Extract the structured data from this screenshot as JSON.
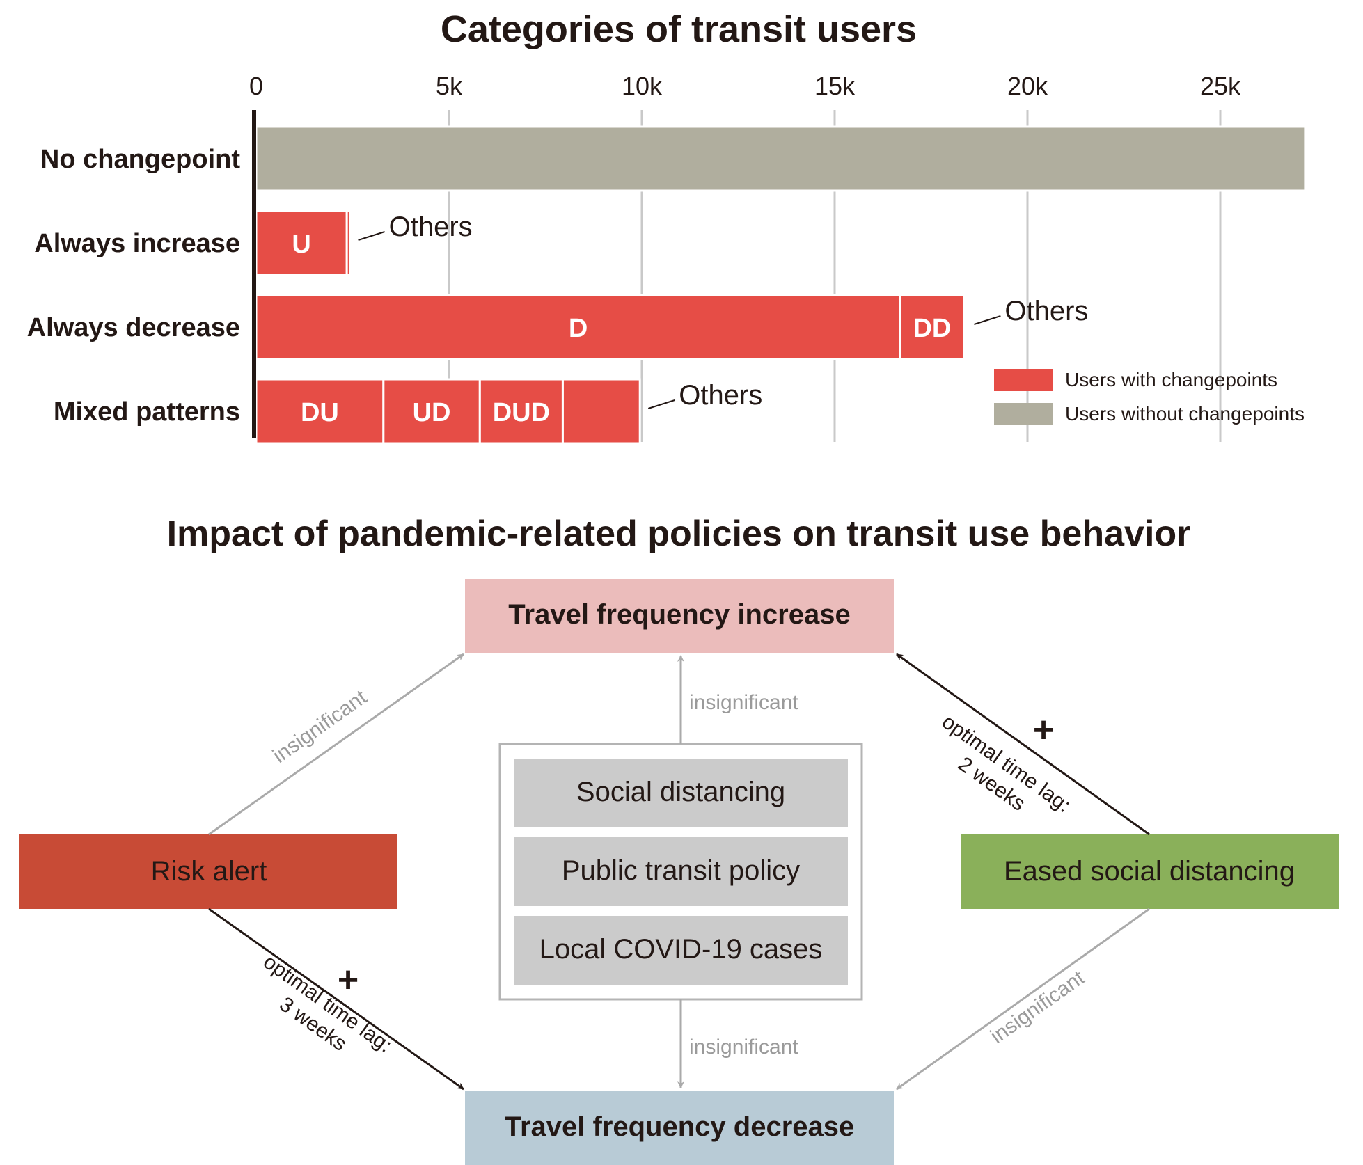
{
  "chart_data": {
    "type": "bar",
    "orientation": "horizontal",
    "stacked": true,
    "title": "Categories of transit users",
    "xlim": [
      0,
      27500
    ],
    "xticks": [
      {
        "value": 0,
        "label": "0"
      },
      {
        "value": 5000,
        "label": "5k"
      },
      {
        "value": 10000,
        "label": "10k"
      },
      {
        "value": 15000,
        "label": "15k"
      },
      {
        "value": 20000,
        "label": "20k"
      },
      {
        "value": 25000,
        "label": "25k"
      }
    ],
    "xaxis_position": "top",
    "grid": true,
    "categories": [
      "No changepoint",
      "Always increase",
      "Always decrease",
      "Mixed patterns"
    ],
    "rows": [
      {
        "category": "No changepoint",
        "segments": [
          {
            "label": "",
            "value": 27200,
            "group": "without"
          }
        ],
        "annotation": ""
      },
      {
        "category": "Always increase",
        "segments": [
          {
            "label": "U",
            "value": 2350,
            "group": "with"
          },
          {
            "label": "",
            "value": 80,
            "group": "with"
          }
        ],
        "annotation": "Others"
      },
      {
        "category": "Always decrease",
        "segments": [
          {
            "label": "D",
            "value": 16700,
            "group": "with"
          },
          {
            "label": "DD",
            "value": 1650,
            "group": "with"
          },
          {
            "label": "",
            "value": 50,
            "group": "with"
          }
        ],
        "annotation": "Others"
      },
      {
        "category": "Mixed patterns",
        "segments": [
          {
            "label": "DU",
            "value": 3300,
            "group": "with"
          },
          {
            "label": "UD",
            "value": 2500,
            "group": "with"
          },
          {
            "label": "DUD",
            "value": 2150,
            "group": "with"
          },
          {
            "label": "",
            "value": 2000,
            "group": "with"
          }
        ],
        "annotation": "Others"
      }
    ],
    "legend": {
      "position": "bottom-right",
      "entries": [
        {
          "key": "with",
          "label": "Users with changepoints",
          "color": "#e64d46"
        },
        {
          "key": "without",
          "label": "Users without changepoints",
          "color": "#b0ae9e"
        }
      ]
    }
  },
  "diagram": {
    "title": "Impact of pandemic-related policies on transit use behavior",
    "nodes": {
      "increase": {
        "label": "Travel frequency increase",
        "color": "#ebbcbb"
      },
      "decrease": {
        "label": "Travel frequency decrease",
        "color": "#b8cbd6"
      },
      "risk": {
        "label": "Risk alert",
        "color": "#c84b36"
      },
      "eased": {
        "label": "Eased social distancing",
        "color": "#8ab05a"
      },
      "center_items": [
        "Social distancing",
        "Public transit policy",
        "Local COVID-19 cases"
      ],
      "center_item_color": "#cbcbcb"
    },
    "edges": {
      "risk_to_increase": "insignificant",
      "center_to_increase": "insignificant",
      "center_to_decrease": "insignificant",
      "eased_to_decrease": "insignificant",
      "eased_to_increase": {
        "sign": "+",
        "line1": "optimal time lag:",
        "line2": "2 weeks"
      },
      "risk_to_decrease": {
        "sign": "+",
        "line1": "optimal time lag:",
        "line2": "3 weeks"
      }
    },
    "colors": {
      "significant_arrow": "#231815",
      "insignificant_arrow": "#aaaaaa"
    }
  }
}
